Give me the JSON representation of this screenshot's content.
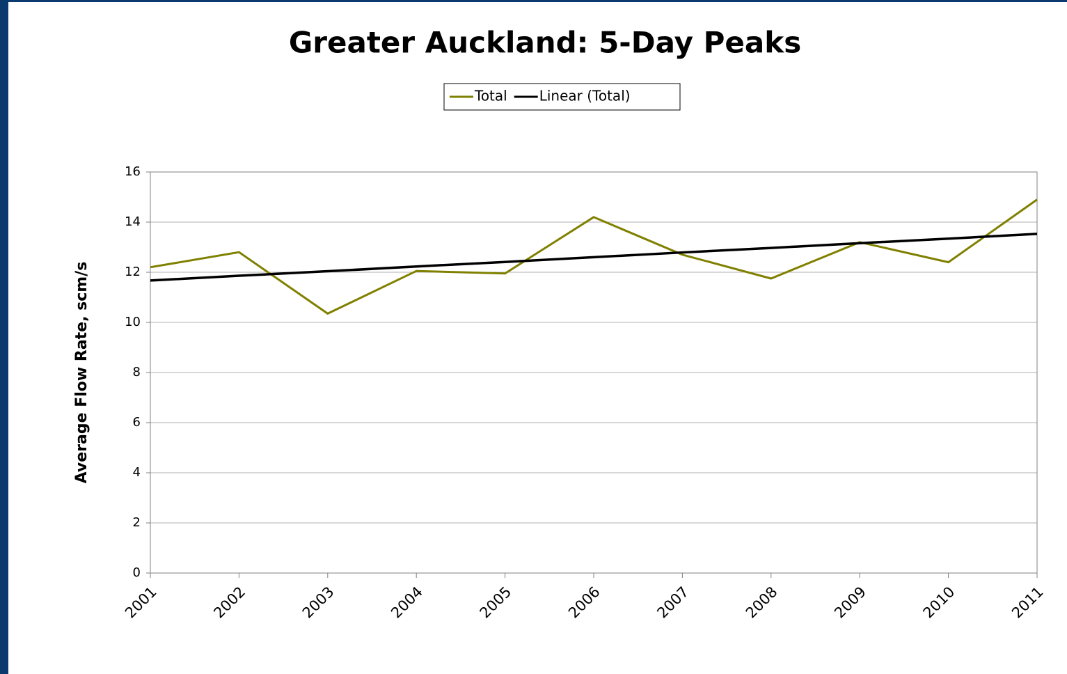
{
  "chart_data": {
    "type": "line",
    "title": "Greater Auckland: 5-Day Peaks",
    "ylabel": "Average Flow Rate, scm/s",
    "categories": [
      "2001",
      "2002",
      "2003",
      "2004",
      "2005",
      "2006",
      "2007",
      "2008",
      "2009",
      "2010",
      "2011"
    ],
    "series": [
      {
        "name": "Total",
        "color": "#808000",
        "values": [
          12.2,
          12.8,
          10.35,
          12.05,
          11.95,
          14.2,
          12.7,
          11.75,
          13.2,
          12.4,
          14.9
        ]
      },
      {
        "name": "Linear (Total)",
        "color": "#000000",
        "values": [
          11.67,
          11.86,
          12.04,
          12.23,
          12.41,
          12.6,
          12.79,
          12.97,
          13.16,
          13.34,
          13.53
        ]
      }
    ],
    "ylim": [
      0,
      16
    ],
    "yticks": [
      0,
      2,
      4,
      6,
      8,
      10,
      12,
      14,
      16
    ],
    "grid": true,
    "legend": "top"
  }
}
